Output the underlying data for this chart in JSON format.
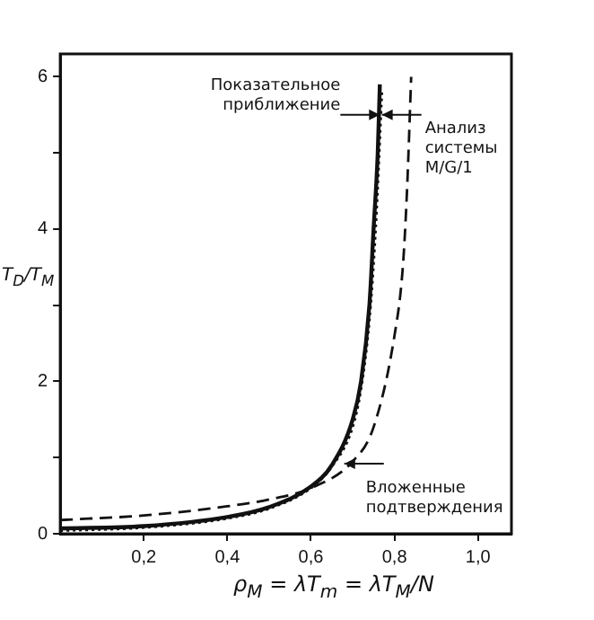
{
  "chart_data": {
    "type": "line",
    "xlabel": "ρ$_{M}$ = λT$_{m}$ = λT$_{M}$/N",
    "ylabel": "T$_{D}$/T$_{M}$",
    "xlim": [
      0,
      1.08
    ],
    "ylim": [
      0,
      6.3
    ],
    "xticks": [
      {
        "value": 0.2,
        "label": "0,2"
      },
      {
        "value": 0.4,
        "label": "0,4"
      },
      {
        "value": 0.6,
        "label": "0,6"
      },
      {
        "value": 0.8,
        "label": "0,8"
      },
      {
        "value": 1.0,
        "label": "1,0"
      }
    ],
    "yticks": [
      0,
      {
        "value": 1,
        "label": null
      },
      2,
      {
        "value": 3,
        "label": null
      },
      4,
      {
        "value": 5,
        "label": null
      },
      6
    ],
    "grid": false,
    "legend": false,
    "marker": "none",
    "series": [
      {
        "color": "#111111",
        "line_style": "solid",
        "x": [
          0,
          0.2,
          0.4,
          0.5,
          0.6,
          0.65,
          0.7,
          0.72,
          0.74,
          0.75,
          0.76,
          0.765
        ],
        "values": [
          0.07,
          0.1,
          0.22,
          0.35,
          0.62,
          0.9,
          1.5,
          2.0,
          3.0,
          4.0,
          5.0,
          5.9
        ]
      },
      {
        "color": "#111111",
        "line_style": "dotted",
        "x": [
          0,
          0.2,
          0.4,
          0.5,
          0.6,
          0.65,
          0.7,
          0.72,
          0.74,
          0.755,
          0.77
        ],
        "values": [
          0.04,
          0.08,
          0.2,
          0.33,
          0.6,
          0.88,
          1.4,
          1.9,
          2.8,
          4.0,
          5.8
        ]
      },
      {
        "color": "#111111",
        "line_style": "dashed",
        "x": [
          0,
          0.2,
          0.4,
          0.5,
          0.6,
          0.7,
          0.75,
          0.8,
          0.82,
          0.83,
          0.84
        ],
        "values": [
          0.18,
          0.24,
          0.36,
          0.45,
          0.6,
          0.95,
          1.4,
          2.6,
          3.5,
          4.5,
          6.0
        ]
      }
    ],
    "annotations": [
      {
        "text": "Показательное приближение",
        "x": 0.765,
        "y": 5.5
      },
      {
        "text": "Анализ системы M/G/1",
        "x": 0.77,
        "y": 5.5
      },
      {
        "text": "Вложенные подтверждения",
        "x": 0.68,
        "y": 0.92
      }
    ]
  }
}
